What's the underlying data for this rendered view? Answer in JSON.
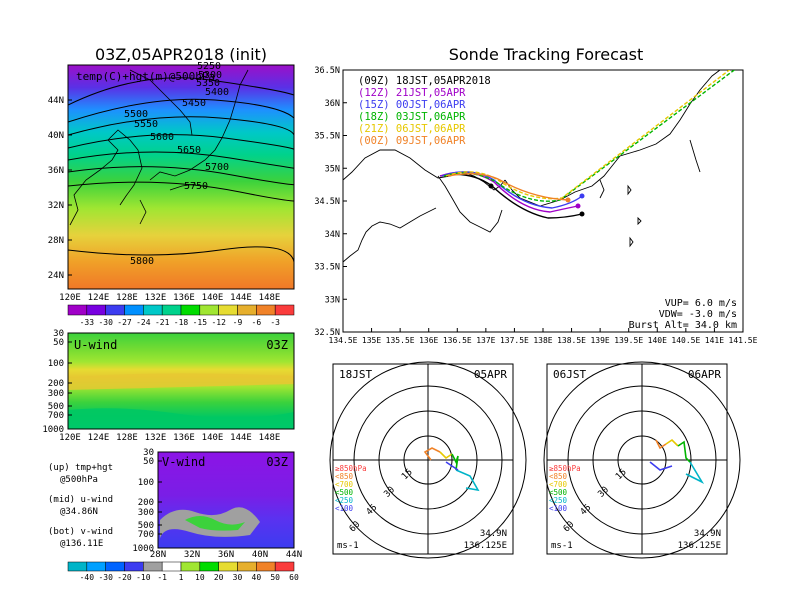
{
  "left_title": "03Z,05APR2018 (init)",
  "right_title": "Sonde Tracking Forecast",
  "top_map": {
    "label": "temp(C)+hgt(m)@500hPa",
    "lat_ticks": [
      "44N",
      "40N",
      "36N",
      "32N",
      "28N",
      "24N"
    ],
    "lon_ticks": [
      "120E",
      "124E",
      "128E",
      "132E",
      "136E",
      "140E",
      "144E",
      "148E"
    ],
    "contours": [
      "5250",
      "5300",
      "5350",
      "5400",
      "5450",
      "5500",
      "5550",
      "5600",
      "5650",
      "5700",
      "5750",
      "5800"
    ],
    "colorbar_ticks": [
      "-33",
      "-30",
      "-27",
      "-24",
      "-21",
      "-18",
      "-15",
      "-12",
      "-9",
      "-6",
      "-3"
    ],
    "colorbar_colors": [
      "#a000c8",
      "#7800e0",
      "#3c3cf0",
      "#0090ff",
      "#00c8c8",
      "#00d28c",
      "#00dc00",
      "#a0e632",
      "#e6dc32",
      "#e6af2d",
      "#f08228",
      "#fa3c3c"
    ]
  },
  "uwind": {
    "label": "U-wind",
    "time": "03Z",
    "p_ticks": [
      "30",
      "50",
      "100",
      "200",
      "300",
      "500",
      "700",
      "1000"
    ],
    "lon_ticks": [
      "120E",
      "124E",
      "128E",
      "132E",
      "136E",
      "140E",
      "144E",
      "148E"
    ]
  },
  "vwind": {
    "label": "V-wind",
    "time": "03Z",
    "p_ticks": [
      "30",
      "50",
      "100",
      "200",
      "300",
      "500",
      "700",
      "1000"
    ],
    "lat_ticks": [
      "28N",
      "32N",
      "36N",
      "40N",
      "44N"
    ]
  },
  "legend_notes": [
    {
      "line1": "(up) tmp+hgt",
      "line2": "@500hPa"
    },
    {
      "line1": "(mid) u-wind",
      "line2": "@34.86N"
    },
    {
      "line1": "(bot) v-wind",
      "line2": "@136.11E"
    }
  ],
  "wind_colorbar": {
    "ticks": [
      "-40",
      "-30",
      "-20",
      "-10",
      "-1",
      "1",
      "10",
      "20",
      "30",
      "40",
      "50",
      "60"
    ],
    "colors": [
      "#00b4c8",
      "#00a0ff",
      "#0064ff",
      "#3c3cf0",
      "#a0a0a0",
      "#ffffff",
      "#a0e632",
      "#00dc00",
      "#e6dc32",
      "#e6af2d",
      "#f08228",
      "#fa3c3c"
    ]
  },
  "track_map": {
    "lat_ticks": [
      "36.5N",
      "36N",
      "35.5N",
      "35N",
      "34.5N",
      "34N",
      "33.5N",
      "33N",
      "32.5N"
    ],
    "lon_ticks": [
      "134.5E",
      "135E",
      "135.5E",
      "136E",
      "136.5E",
      "137E",
      "137.5E",
      "138E",
      "138.5E",
      "139E",
      "139.5E",
      "140E",
      "140.5E",
      "141E",
      "141.5E"
    ],
    "legend": [
      {
        "text": "(09Z)  18JST,05APR2018",
        "color": "#000000"
      },
      {
        "text": "(12Z)  21JST,05APR",
        "color": "#a000c8"
      },
      {
        "text": "(15Z)  00JST,06APR",
        "color": "#3c3cf0"
      },
      {
        "text": "(18Z)  03JST,06APR",
        "color": "#00b400"
      },
      {
        "text": "(21Z)  06JST,06APR",
        "color": "#e6c800"
      },
      {
        "text": "(00Z)  09JST,06APR",
        "color": "#f08228"
      }
    ],
    "info": [
      "VUP=  6.0 m/s",
      "VDW= -3.0 m/s",
      "Burst Alt= 34.0 km"
    ]
  },
  "hodo1": {
    "time": "18JST",
    "date": "05APR",
    "rings": [
      "15",
      "30",
      "45",
      "60"
    ],
    "levels": [
      {
        "text": "≥850hPa",
        "color": "#fa3c3c"
      },
      {
        "text": "<850",
        "color": "#f08228"
      },
      {
        "text": "<700",
        "color": "#e6c800"
      },
      {
        "text": "<500",
        "color": "#00b400"
      },
      {
        "text": "<250",
        "color": "#00b4c8"
      },
      {
        "text": "<100",
        "color": "#3c3cf0"
      }
    ],
    "unit": "ms-1",
    "lat": "34.9N",
    "lon": "136.125E"
  },
  "hodo2": {
    "time": "06JST",
    "date": "06APR",
    "rings": [
      "15",
      "30",
      "45",
      "60"
    ],
    "levels": [
      {
        "text": "≥850hPa",
        "color": "#fa3c3c"
      },
      {
        "text": "<850",
        "color": "#f08228"
      },
      {
        "text": "<700",
        "color": "#e6c800"
      },
      {
        "text": "<500",
        "color": "#00b400"
      },
      {
        "text": "<250",
        "color": "#00b4c8"
      },
      {
        "text": "<100",
        "color": "#3c3cf0"
      }
    ],
    "unit": "ms-1",
    "lat": "34.9N",
    "lon": "136.125E"
  }
}
